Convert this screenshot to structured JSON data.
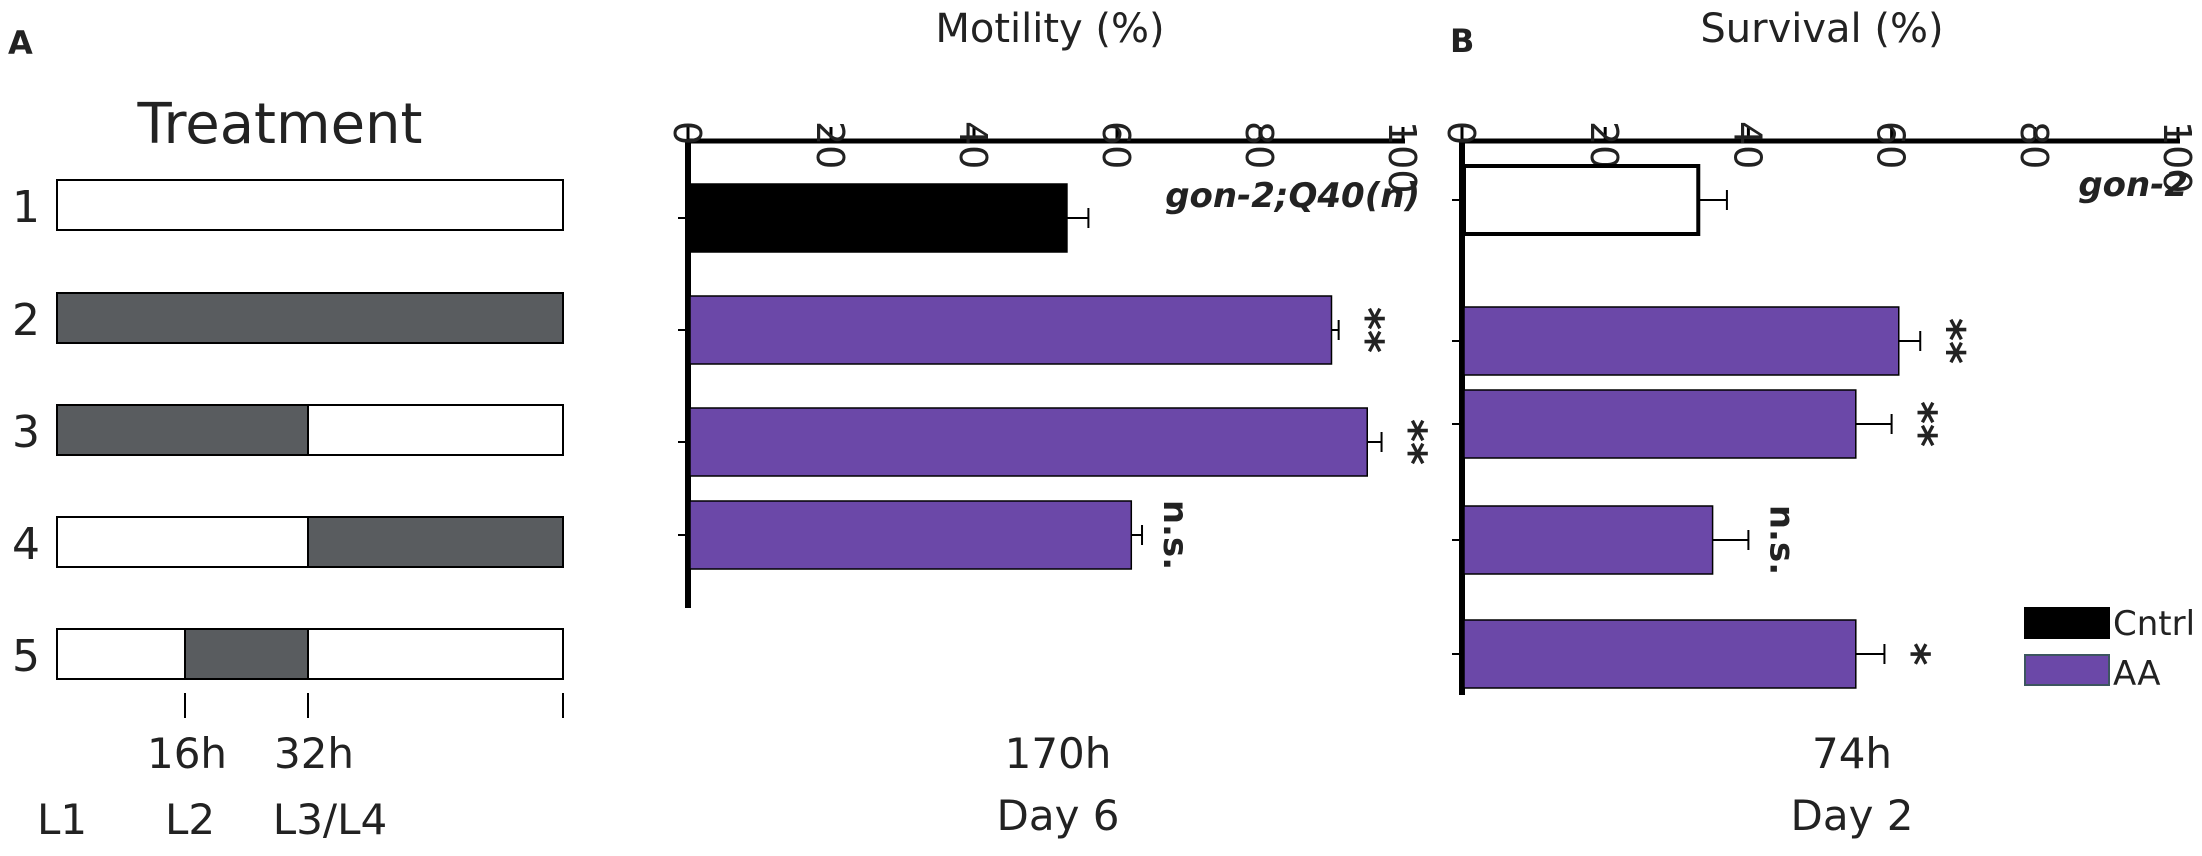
{
  "panels": {
    "a": "A",
    "b": "B"
  },
  "treatment": {
    "title": "Treatment",
    "rows": [
      {
        "label": "1",
        "segments": [
          0,
          0,
          0
        ]
      },
      {
        "label": "2",
        "segments": [
          1,
          1,
          1
        ]
      },
      {
        "label": "3",
        "segments": [
          1,
          1,
          0
        ]
      },
      {
        "label": "4",
        "segments": [
          0,
          0,
          1
        ]
      },
      {
        "label": "5",
        "segments": [
          0,
          1,
          0
        ]
      }
    ],
    "time_labels": [
      "16h",
      "32h"
    ],
    "stage_labels": [
      "L1",
      "L2",
      "L3/L4"
    ],
    "colors": {
      "treated": "#595c5f",
      "untreated": "#ffffff"
    }
  },
  "legend": [
    {
      "label": "Cntrl",
      "color": "#000000"
    },
    {
      "label": "AA",
      "color": "#6b48a8"
    }
  ],
  "chart_data": [
    {
      "type": "bar",
      "orientation": "horizontal",
      "title": "Motility (%)",
      "strain": "gon-2;Q40(n)",
      "categories": [
        "1",
        "2",
        "3",
        "4"
      ],
      "values": [
        53,
        90,
        95,
        62
      ],
      "errors": [
        3,
        1,
        2,
        1.5
      ],
      "significance": [
        "",
        "**",
        "**",
        "n.s."
      ],
      "colors": [
        "#000000",
        "#6b48a8",
        "#6b48a8",
        "#6b48a8"
      ],
      "xlim": [
        0,
        100
      ],
      "ticks": [
        0,
        20,
        40,
        60,
        80,
        100
      ],
      "time": "170h",
      "day": "Day 6"
    },
    {
      "type": "bar",
      "orientation": "horizontal",
      "title": "Survival (%)",
      "strain": "gon-2",
      "categories": [
        "1",
        "2",
        "3",
        "4",
        "5"
      ],
      "values": [
        33,
        61,
        55,
        35,
        55
      ],
      "errors": [
        4,
        3,
        5,
        5,
        4
      ],
      "significance": [
        "",
        "**",
        "**",
        "n.s.",
        "*"
      ],
      "colors": [
        "#ffffff",
        "#6b48a8",
        "#6b48a8",
        "#6b48a8",
        "#6b48a8"
      ],
      "xlim": [
        0,
        100
      ],
      "ticks": [
        0,
        20,
        40,
        60,
        80,
        100
      ],
      "time": "74h",
      "day": "Day 2"
    }
  ]
}
